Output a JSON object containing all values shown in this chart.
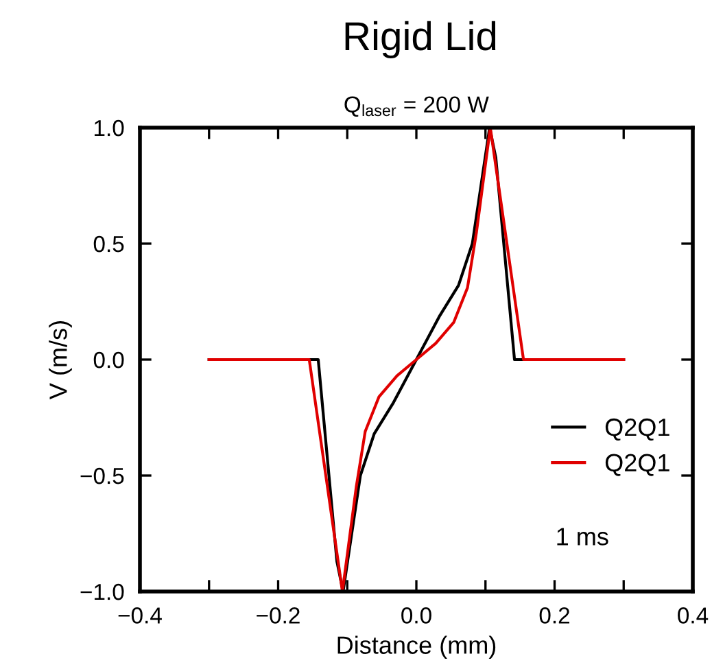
{
  "chart_data": {
    "type": "line",
    "title": "Rigid Lid",
    "subtitle": "Q$_{laser}$ = 200 W",
    "xlabel": "Distance (mm)",
    "ylabel": "V (m/s)",
    "xlim": [
      -0.4,
      0.4
    ],
    "ylim": [
      -1.0,
      1.0
    ],
    "xticks": [
      {
        "value": -0.4,
        "label": "−0.4"
      },
      {
        "value": -0.3,
        "label": null
      },
      {
        "value": -0.2,
        "label": "−0.2"
      },
      {
        "value": -0.1,
        "label": null
      },
      {
        "value": 0,
        "label": "0.0"
      },
      {
        "value": 0.1,
        "label": null
      },
      {
        "value": 0.2,
        "label": "0.2"
      },
      {
        "value": 0.3,
        "label": null
      },
      {
        "value": 0.4,
        "label": "0.4"
      }
    ],
    "yticks": [
      {
        "value": -1,
        "label": "−1.0"
      },
      {
        "value": -0.5,
        "label": "−0.5"
      },
      {
        "value": 0,
        "label": "0.0"
      },
      {
        "value": 0.5,
        "label": "0.5"
      },
      {
        "value": 1,
        "label": "1.0"
      }
    ],
    "grid": false,
    "legend": "bottom right",
    "marker": "none",
    "line_style": "solid",
    "annotations": [
      "1 ms"
    ],
    "series": [
      {
        "name": "Q2Q1",
        "color": "#000000",
        "x": [
          -0.3,
          -0.142,
          -0.115,
          -0.106,
          -0.081,
          -0.061,
          -0.034,
          0.0,
          0.034,
          0.061,
          0.081,
          0.106,
          0.115,
          0.142,
          0.3
        ],
        "values": [
          0.0,
          0.0,
          -0.87,
          -1.0,
          -0.5,
          -0.32,
          -0.19,
          0.0,
          0.19,
          0.32,
          0.5,
          1.0,
          0.87,
          0.0,
          0.0
        ]
      },
      {
        "name": "Q2Q1",
        "color": "#e00000",
        "x": [
          -0.3,
          -0.155,
          -0.107,
          -0.087,
          -0.074,
          -0.054,
          -0.028,
          0.0,
          0.028,
          0.054,
          0.074,
          0.087,
          0.107,
          0.155,
          0.3
        ],
        "values": [
          0.0,
          0.0,
          -1.0,
          -0.55,
          -0.31,
          -0.16,
          -0.07,
          0.0,
          0.07,
          0.16,
          0.31,
          0.55,
          1.0,
          0.0,
          0.0
        ]
      }
    ]
  }
}
